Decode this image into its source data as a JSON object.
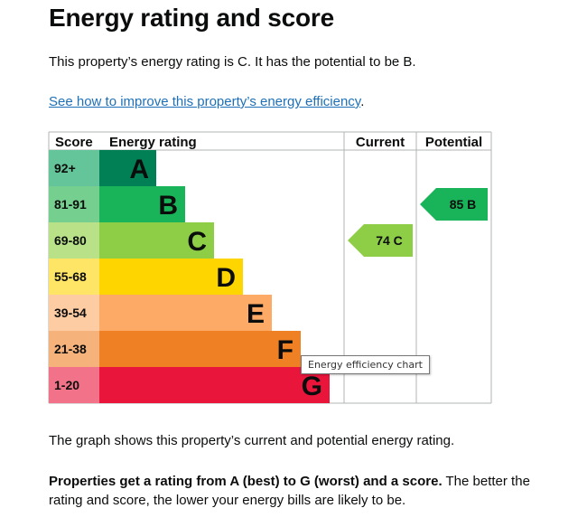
{
  "page": {
    "heading": "Energy rating and score",
    "summary": "This property’s energy rating is C. It has the potential to be B.",
    "improve_link": "See how to improve this property’s energy efficiency",
    "improve_link_suffix": ".",
    "tooltip": "Energy efficiency chart",
    "graph_note": "The graph shows this property’s current and potential energy rating.",
    "rating_bold": "Properties get a rating from A (best) to G (worst) and a score.",
    "rating_rest": " The better the rating and score, the lower your energy bills are likely to be."
  },
  "chart_data": {
    "type": "bar",
    "headers": {
      "score": "Score",
      "rating": "Energy rating",
      "current": "Current",
      "potential": "Potential"
    },
    "bands": [
      {
        "letter": "A",
        "range": "92+",
        "color": "#008054",
        "range_color": "#63c599"
      },
      {
        "letter": "B",
        "range": "81-91",
        "color": "#19b459",
        "range_color": "#75d08f"
      },
      {
        "letter": "C",
        "range": "69-80",
        "color": "#8dce46",
        "range_color": "#b9e288"
      },
      {
        "letter": "D",
        "range": "55-68",
        "color": "#ffd500",
        "range_color": "#ffe566"
      },
      {
        "letter": "E",
        "range": "39-54",
        "color": "#fcaa65",
        "range_color": "#fdcca3"
      },
      {
        "letter": "F",
        "range": "21-38",
        "color": "#ef8023",
        "range_color": "#f5b37b"
      },
      {
        "letter": "G",
        "range": "1-20",
        "color": "#e9153b",
        "range_color": "#f27389"
      }
    ],
    "current": {
      "score": 74,
      "band": "C",
      "label": "74 C",
      "color": "#8dce46"
    },
    "potential": {
      "score": 85,
      "band": "B",
      "label": "85 B",
      "color": "#19b459"
    }
  }
}
